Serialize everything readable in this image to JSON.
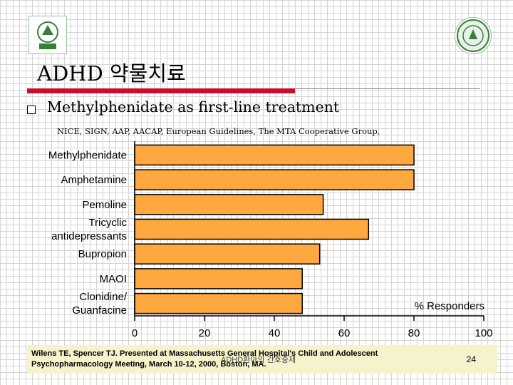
{
  "slide": {
    "title": "ADHD 약물치료",
    "bullet": "Methylphenidate as first-line treatment",
    "source_line": "NICE, SIGN, AAP, AACAP, European Guidelines, The MTA Cooperative Group,"
  },
  "logos": {
    "left": {
      "icon": "university-logo-icon"
    },
    "right": {
      "icon": "university-seal-icon"
    }
  },
  "colors": {
    "bar_fill": "#fea83f",
    "bar_stroke": "#000000",
    "title_rule": "#c8102e",
    "citation_bg": "#f5f2cc"
  },
  "chart_data": {
    "type": "bar",
    "orientation": "horizontal",
    "categories": [
      "Methylphenidate",
      "Amphetamine",
      "Pemoline",
      "Tricyclic antidepressants",
      "Bupropion",
      "MAOI",
      "Clonidine/ Guanfacine"
    ],
    "category_lines": [
      [
        "Methylphenidate"
      ],
      [
        "Amphetamine"
      ],
      [
        "Pemoline"
      ],
      [
        "Tricyclic",
        "antidepressants"
      ],
      [
        "Bupropion"
      ],
      [
        "MAOI"
      ],
      [
        "Clonidine/",
        "Guanfacine"
      ]
    ],
    "values": [
      80,
      80,
      54,
      67,
      53,
      48,
      48
    ],
    "xlim": [
      0,
      100
    ],
    "xticks": [
      "0",
      "20",
      "40",
      "60",
      "80",
      "100"
    ],
    "xlabel": "% Responders",
    "ylabel": "",
    "grid": false,
    "legend": false
  },
  "citation": {
    "line1": "Wilens TE, Spencer TJ. Presented at Massachusetts General Hospital's Child and Adolescent",
    "line2": "Psychopharmacology Meeting, March 10-12, 2000, Boston, MA.",
    "overlap_text": "ADHD환아의 간호중재",
    "page_number": "24"
  }
}
